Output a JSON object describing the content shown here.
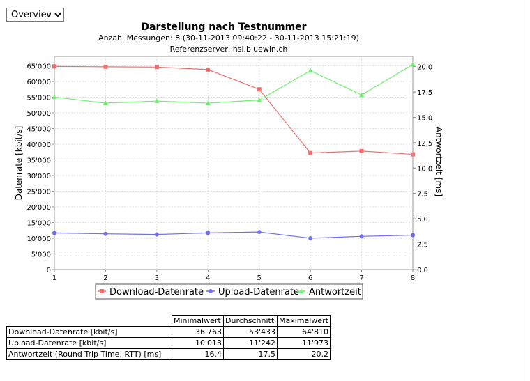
{
  "controls": {
    "view_select": {
      "selected": "Overview"
    }
  },
  "chart_data": {
    "type": "line",
    "title": "Darstellung nach Testnummer",
    "subtitle_lines": [
      "Anzahl Messungen: 8 (30-11-2013 09:40:22 - 30-11-2013 15:21:19)",
      "Referenzserver: hsi.bluewin.ch"
    ],
    "x": [
      1,
      2,
      3,
      4,
      5,
      6,
      7,
      8
    ],
    "xlim": [
      1,
      8
    ],
    "x_ticks": [
      "1",
      "2",
      "3",
      "4",
      "5",
      "6",
      "7",
      "8"
    ],
    "ylabel": "Datenrate [kbit/s]",
    "ylim": [
      0,
      68000
    ],
    "y_ticks": [
      "0",
      "5'000",
      "10'000",
      "15'000",
      "20'000",
      "25'000",
      "30'000",
      "35'000",
      "40'000",
      "45'000",
      "50'000",
      "55'000",
      "60'000",
      "65'000"
    ],
    "y2label": "Antwortzeit [ms]",
    "y2lim": [
      0,
      21
    ],
    "y2_ticks": [
      "0.0",
      "2.5",
      "5.0",
      "7.5",
      "10.0",
      "12.5",
      "15.0",
      "17.5",
      "20.0"
    ],
    "grid": true,
    "legend_position": "bottom",
    "series": [
      {
        "name": "Download-Datenrate",
        "axis": "left",
        "color": "#f07070",
        "marker": "square",
        "values": [
          64810,
          64700,
          64600,
          63800,
          57500,
          37200,
          37800,
          36763
        ]
      },
      {
        "name": "Upload-Datenrate",
        "axis": "left",
        "color": "#6f6ff0",
        "marker": "circle",
        "values": [
          11700,
          11400,
          11200,
          11700,
          11973,
          10013,
          10600,
          11000
        ]
      },
      {
        "name": "Antwortzeit",
        "axis": "right",
        "color": "#70f070",
        "marker": "triangle",
        "values": [
          17.0,
          16.4,
          16.6,
          16.4,
          16.7,
          19.6,
          17.2,
          20.2
        ]
      }
    ]
  },
  "stats_table": {
    "headers": [
      "Minimalwert",
      "Durchschnitt",
      "Maximalwert"
    ],
    "rows": [
      {
        "label": "Download-Datenrate [kbit/s]",
        "min": "36'763",
        "avg": "53'433",
        "max": "64'810"
      },
      {
        "label": "Upload-Datenrate [kbit/s]",
        "min": "10'013",
        "avg": "11'242",
        "max": "11'973"
      },
      {
        "label": "Antwortzeit (Round Trip Time, RTT) [ms]",
        "min": "16.4",
        "avg": "17.5",
        "max": "20.2"
      }
    ]
  }
}
